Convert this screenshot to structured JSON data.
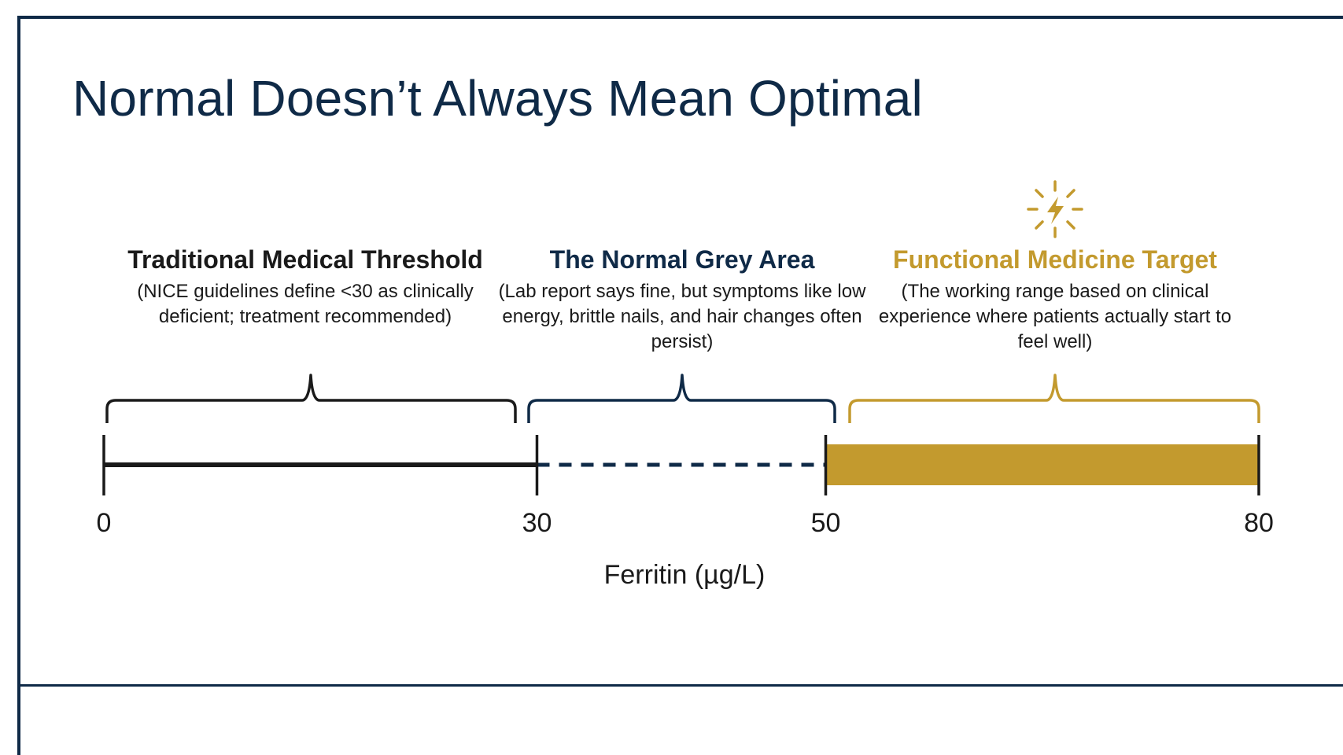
{
  "title": "Normal Doesn’t Always Mean Optimal",
  "sections": {
    "traditional": {
      "heading": "Traditional Medical Threshold",
      "description": "(NICE guidelines define <30 as clinically deficient; treatment recommended)"
    },
    "grey": {
      "heading": "The Normal Grey Area",
      "description": "(Lab report says fine, but symptoms like low energy, brittle nails, and hair changes often persist)"
    },
    "functional": {
      "heading": "Functional Medicine Target",
      "description": "(The working range based on clinical experience where patients actually start to feel well)",
      "icon": "sparkle-lightning-icon"
    }
  },
  "scale": {
    "ticks": [
      "0",
      "30",
      "50",
      "80"
    ],
    "axis_label": "Ferritin (µg/L)",
    "min": 0,
    "max": 80,
    "ranges": [
      {
        "from": 0,
        "to": 30,
        "style": "solid-line",
        "color": "#1a1a1a"
      },
      {
        "from": 30,
        "to": 50,
        "style": "dashed-line",
        "color": "#0f2a47"
      },
      {
        "from": 50,
        "to": 80,
        "style": "filled-bar",
        "color": "#c39a2e"
      }
    ]
  },
  "colors": {
    "navy": "#0f2a47",
    "gold": "#c39a2e",
    "black": "#1a1a1a"
  }
}
